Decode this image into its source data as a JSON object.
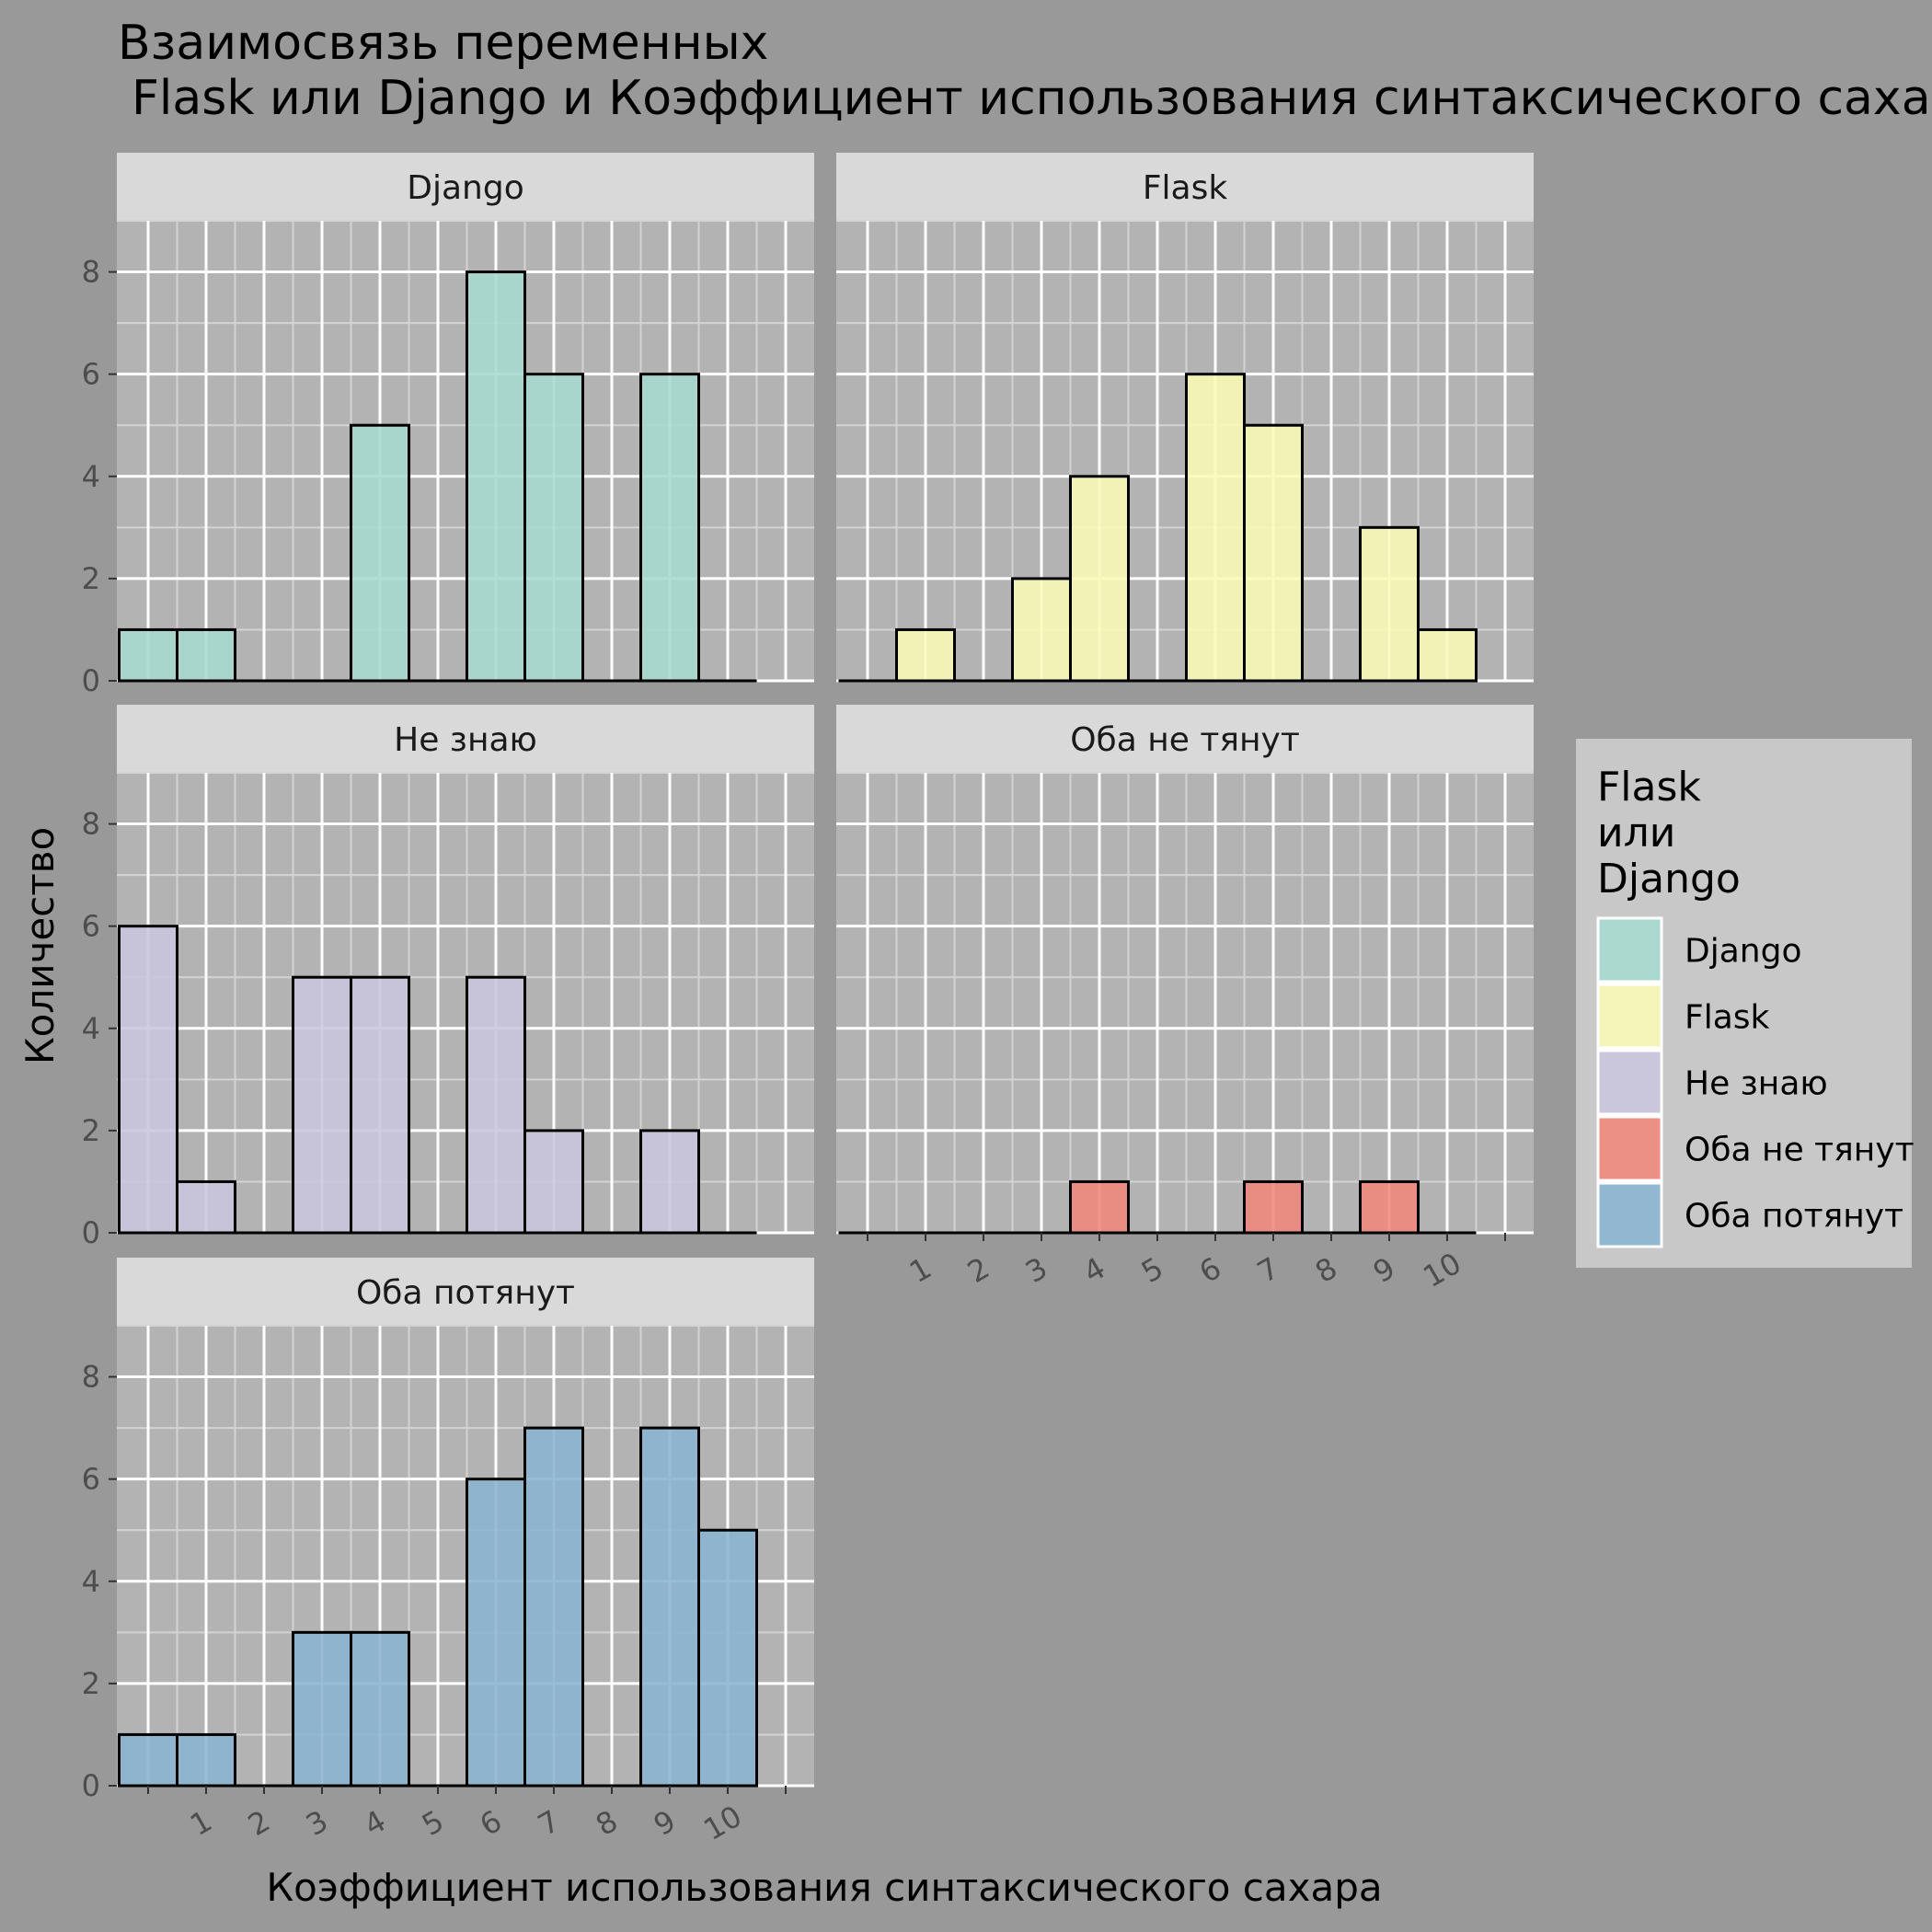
{
  "chart_data": {
    "type": "bar",
    "title_line1": "Взаимосвязь переменных",
    "title_line2": "Flask или Django и Коэффициент использования синтаксического сахара",
    "xlabel": "Коэффициент использования синтаксического сахара",
    "ylabel": "Количество",
    "x_ticks": [
      "1",
      "2",
      "3",
      "4",
      "5",
      "6",
      "7",
      "8",
      "9",
      "10"
    ],
    "y_ticks": [
      0,
      2,
      4,
      6,
      8
    ],
    "ylim": [
      0,
      9
    ],
    "legend": {
      "title_lines": [
        "Flask",
        "или",
        "Django"
      ],
      "placement": "right"
    },
    "panels": [
      {
        "name": "Django",
        "color": "#a6dbd0",
        "bins": [
          0,
          1,
          2,
          3,
          4,
          5,
          6,
          7,
          8,
          9,
          10
        ],
        "values": [
          1,
          1,
          0,
          0,
          5,
          0,
          8,
          6,
          0,
          6,
          0
        ]
      },
      {
        "name": "Flask",
        "color": "#fafab7",
        "bins": [
          0,
          1,
          2,
          3,
          4,
          5,
          6,
          7,
          8,
          9,
          10
        ],
        "values": [
          0,
          1,
          0,
          2,
          4,
          0,
          6,
          5,
          0,
          3,
          1
        ]
      },
      {
        "name": "Не знаю",
        "color": "#c9c5dd",
        "bins": [
          0,
          1,
          2,
          3,
          4,
          5,
          6,
          7,
          8,
          9,
          10
        ],
        "values": [
          6,
          1,
          0,
          5,
          5,
          0,
          5,
          2,
          0,
          2,
          0
        ]
      },
      {
        "name": "Оба не тянут",
        "color": "#f0877c",
        "bins": [
          0,
          1,
          2,
          3,
          4,
          5,
          6,
          7,
          8,
          9,
          10
        ],
        "values": [
          0,
          0,
          0,
          0,
          1,
          0,
          0,
          1,
          0,
          1,
          0
        ]
      },
      {
        "name": "Оба потянут",
        "color": "#8ab4d2",
        "bins": [
          0,
          1,
          2,
          3,
          4,
          5,
          6,
          7,
          8,
          9,
          10
        ],
        "values": [
          1,
          1,
          0,
          3,
          3,
          0,
          6,
          7,
          0,
          7,
          5
        ]
      }
    ]
  }
}
